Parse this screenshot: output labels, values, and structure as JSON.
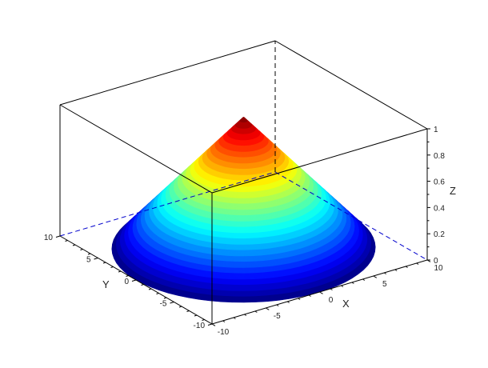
{
  "chart_data": {
    "type": "surface",
    "surface": {
      "shape": "cone",
      "apex": [
        0,
        0,
        1
      ],
      "base_radius": 10,
      "base_z": 0,
      "colormap": "jet"
    },
    "xlabel": "X",
    "ylabel": "Y",
    "zlabel": "Z",
    "xlim": [
      -10,
      10
    ],
    "ylim": [
      -10,
      10
    ],
    "zlim": [
      0,
      1
    ],
    "xticks": [
      "-10",
      "-5",
      "0",
      "5",
      "10"
    ],
    "yticks": [
      "-10",
      "-5",
      "0",
      "5",
      "10"
    ],
    "zticks": [
      "0",
      "0.2",
      "0.4",
      "0.6",
      "0.8",
      "1"
    ],
    "grid": false,
    "box_color": "#000000",
    "hidden_edge_color": "#0000cc"
  }
}
